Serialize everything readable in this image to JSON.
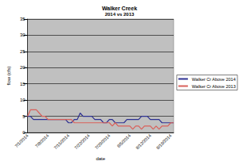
{
  "chart_data": {
    "type": "line",
    "title": "Walker Creek",
    "subtitle": "2014 vs 2013",
    "x_label": "date",
    "y_label": "flow (cfs)",
    "categories": [
      "7/1/2014",
      null,
      null,
      null,
      null,
      null,
      null,
      "7/8/2014",
      null,
      null,
      null,
      null,
      null,
      null,
      "7/15/2014",
      null,
      null,
      null,
      null,
      null,
      null,
      "7/22/2014",
      null,
      null,
      null,
      null,
      null,
      null,
      "7/29/2014",
      null,
      null,
      null,
      null,
      null,
      null,
      "8/5/2014",
      null,
      null,
      null,
      null,
      null,
      null,
      "8/12/2014",
      null,
      null,
      null,
      null,
      null,
      null,
      "8/19/2014",
      null
    ],
    "series": [
      {
        "name": "Walker Cr Above 2014",
        "color": "#2e3192",
        "values": [
          5,
          5,
          4,
          4,
          4,
          4,
          4,
          4,
          4,
          4,
          4,
          4,
          4,
          4,
          3,
          3,
          4,
          4,
          6,
          5,
          5,
          5,
          5,
          4,
          4,
          4,
          3,
          3,
          4,
          4,
          3,
          3,
          3,
          3,
          4,
          4,
          4,
          4,
          4,
          5,
          5,
          5,
          4,
          4,
          4,
          4,
          3,
          3,
          3,
          3,
          3
        ]
      },
      {
        "name": "Walker Cr Above 2013",
        "color": "#d9605a",
        "values": [
          5,
          7,
          7,
          7,
          6,
          5,
          5,
          4,
          4,
          4,
          4,
          4,
          4,
          4,
          4,
          4,
          3,
          3,
          3,
          3,
          3,
          3,
          3,
          3,
          3,
          3,
          3,
          3,
          3,
          2,
          3,
          2,
          2,
          2,
          2,
          2,
          1,
          2,
          2,
          1,
          2,
          2,
          2,
          1,
          2,
          1,
          2,
          2,
          2,
          3,
          3
        ]
      }
    ],
    "ylim": [
      0,
      35
    ],
    "yticks": [
      0,
      5,
      10,
      15,
      20,
      25,
      30,
      35
    ],
    "grid": true,
    "legend": "right",
    "marker": "none"
  }
}
